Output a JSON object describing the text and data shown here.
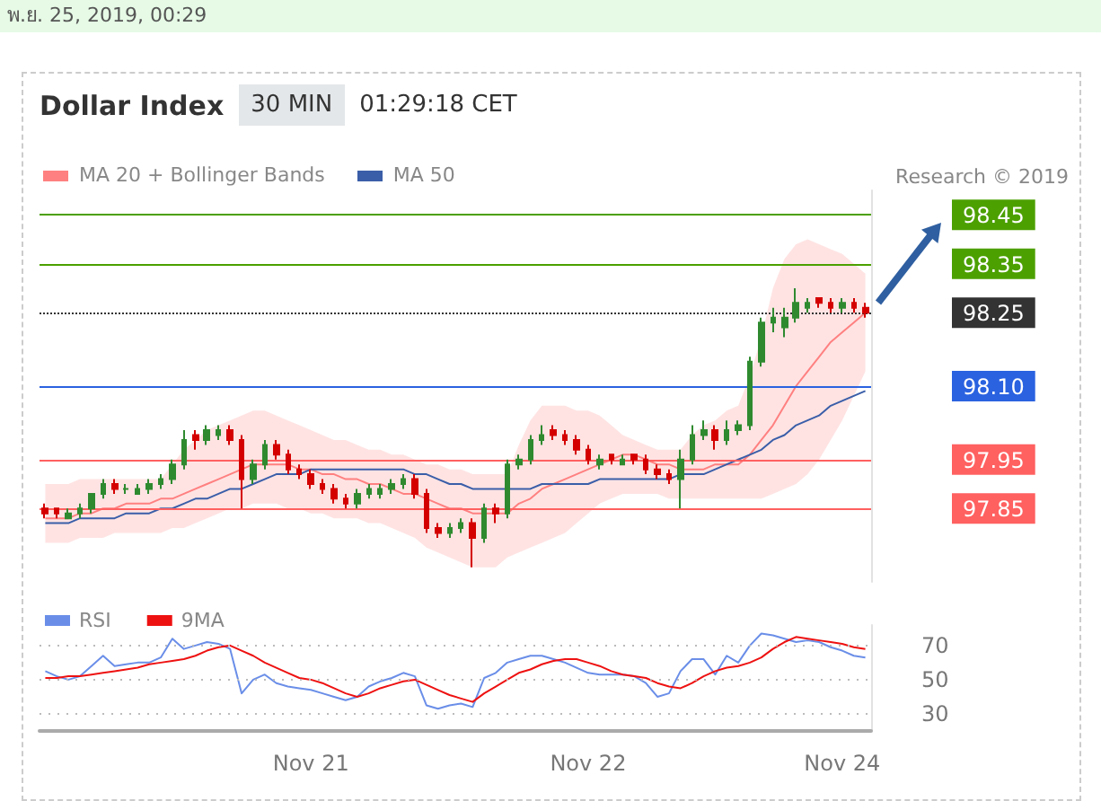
{
  "chart_data": [
    {
      "type": "candlestick",
      "title": "Dollar Index",
      "annotations": [
        "พ.ย. 25, 2019, 00:29",
        "30 MIN",
        "01:29:18 CET",
        "Research © 2019"
      ],
      "categories": [
        null,
        null,
        null,
        null,
        null,
        null,
        null,
        null,
        null,
        null,
        null,
        null,
        null,
        null,
        null,
        null,
        null,
        null,
        null,
        null,
        null,
        null,
        null,
        null,
        null,
        null,
        null,
        null,
        null,
        null,
        null,
        null,
        null,
        null,
        null,
        null,
        null,
        null,
        null,
        null,
        null,
        null,
        null,
        null,
        null,
        null,
        null,
        null,
        null,
        null,
        null,
        null,
        null,
        null,
        null,
        null,
        null,
        null,
        null,
        null,
        null,
        null,
        null,
        null,
        null,
        null,
        null,
        null,
        null,
        null,
        null,
        null
      ],
      "colors": [
        "#d40000",
        "#d40000",
        "#2f8a2f",
        "#2f8a2f",
        "#2f8a2f",
        "#2f8a2f",
        "#d40000",
        "#2f8a2f",
        "#2f8a2f",
        "#2f8a2f",
        "#2f8a2f",
        "#2f8a2f",
        "#2f8a2f",
        "#d40000",
        "#2f8a2f",
        "#2f8a2f",
        "#d40000",
        "#d40000",
        "#2f8a2f",
        "#2f8a2f",
        "#d40000",
        "#d40000",
        "#d40000",
        "#d40000",
        "#d40000",
        "#d40000",
        "#d40000",
        "#2f8a2f",
        "#2f8a2f",
        "#2f8a2f",
        "#2f8a2f",
        "#2f8a2f",
        "#d40000",
        "#d40000",
        "#d40000",
        "#2f8a2f",
        "#2f8a2f",
        "#d40000",
        "#2f8a2f",
        "#d40000",
        "#2f8a2f",
        "#2f8a2f",
        "#2f8a2f",
        "#2f8a2f",
        "#d40000",
        "#d40000",
        "#d40000",
        "#d40000",
        "#2f8a2f",
        "#d40000",
        "#2f8a2f",
        "#d40000",
        "#d40000",
        "#d40000",
        "#d40000",
        "#2f8a2f",
        "#2f8a2f",
        "#2f8a2f",
        "#d40000",
        "#2f8a2f",
        "#2f8a2f",
        "#2f8a2f",
        "#2f8a2f",
        "#2f8a2f",
        "#2f8a2f",
        "#2f8a2f",
        "#2f8a2f",
        "#d40000",
        "#d40000",
        "#2f8a2f",
        "#d40000",
        "#d40000"
      ],
      "ohlc": [
        [
          97.85,
          97.86,
          97.83,
          97.84
        ],
        [
          97.85,
          97.85,
          97.83,
          97.84
        ],
        [
          97.83,
          97.85,
          97.83,
          97.84
        ],
        [
          97.84,
          97.86,
          97.83,
          97.85
        ],
        [
          97.85,
          97.88,
          97.84,
          97.88
        ],
        [
          97.88,
          97.91,
          97.87,
          97.9
        ],
        [
          97.9,
          97.91,
          97.88,
          97.89
        ],
        [
          97.89,
          97.9,
          97.88,
          97.89
        ],
        [
          97.88,
          97.9,
          97.88,
          97.89
        ],
        [
          97.89,
          97.91,
          97.88,
          97.9
        ],
        [
          97.9,
          97.92,
          97.89,
          97.91
        ],
        [
          97.91,
          97.95,
          97.9,
          97.94
        ],
        [
          97.94,
          98.01,
          97.93,
          97.99
        ],
        [
          98,
          98.01,
          97.97,
          97.99
        ],
        [
          97.99,
          98.02,
          97.98,
          98.01
        ],
        [
          98,
          98.02,
          97.99,
          98.01
        ],
        [
          98.01,
          98.02,
          97.98,
          97.99
        ],
        [
          97.99,
          98,
          97.85,
          97.91
        ],
        [
          97.91,
          97.95,
          97.9,
          97.94
        ],
        [
          97.94,
          97.99,
          97.93,
          97.98
        ],
        [
          97.98,
          97.99,
          97.95,
          97.96
        ],
        [
          97.96,
          97.97,
          97.92,
          97.93
        ],
        [
          97.93,
          97.94,
          97.91,
          97.92
        ],
        [
          97.92,
          97.93,
          97.89,
          97.9
        ],
        [
          97.9,
          97.91,
          97.88,
          97.89
        ],
        [
          97.89,
          97.9,
          97.86,
          97.87
        ],
        [
          97.87,
          97.88,
          97.85,
          97.86
        ],
        [
          97.86,
          97.89,
          97.85,
          97.88
        ],
        [
          97.88,
          97.9,
          97.87,
          97.89
        ],
        [
          97.88,
          97.9,
          97.87,
          97.89
        ],
        [
          97.89,
          97.91,
          97.88,
          97.9
        ],
        [
          97.9,
          97.92,
          97.89,
          97.91
        ],
        [
          97.91,
          97.92,
          97.87,
          97.88
        ],
        [
          97.88,
          97.89,
          97.8,
          97.81
        ],
        [
          97.81,
          97.82,
          97.79,
          97.8
        ],
        [
          97.8,
          97.82,
          97.79,
          97.81
        ],
        [
          97.81,
          97.83,
          97.8,
          97.82
        ],
        [
          97.82,
          97.83,
          97.73,
          97.79
        ],
        [
          97.79,
          97.86,
          97.78,
          97.85
        ],
        [
          97.85,
          97.86,
          97.82,
          97.84
        ],
        [
          97.84,
          97.95,
          97.83,
          97.94
        ],
        [
          97.94,
          97.96,
          97.93,
          97.95
        ],
        [
          97.95,
          98,
          97.94,
          97.99
        ],
        [
          97.99,
          98.02,
          97.98,
          98
        ],
        [
          98.01,
          98.02,
          97.99,
          98
        ],
        [
          98,
          98.01,
          97.98,
          97.99
        ],
        [
          97.99,
          98,
          97.96,
          97.97
        ],
        [
          97.97,
          97.98,
          97.94,
          97.95
        ],
        [
          97.94,
          97.96,
          97.93,
          97.95
        ],
        [
          97.96,
          97.96,
          97.94,
          97.95
        ],
        [
          97.94,
          97.96,
          97.94,
          97.95
        ],
        [
          97.96,
          97.96,
          97.94,
          97.95
        ],
        [
          97.95,
          97.96,
          97.92,
          97.93
        ],
        [
          97.93,
          97.94,
          97.91,
          97.92
        ],
        [
          97.92,
          97.93,
          97.9,
          97.91
        ],
        [
          97.91,
          97.97,
          97.85,
          97.95
        ],
        [
          97.95,
          98.02,
          97.94,
          98
        ],
        [
          98,
          98.03,
          97.99,
          98.01
        ],
        [
          98.01,
          98.02,
          97.97,
          97.99
        ],
        [
          97.99,
          98.03,
          97.98,
          98.01
        ],
        [
          98.01,
          98.03,
          98,
          98.02
        ],
        [
          98.02,
          98.16,
          98.01,
          98.15
        ],
        [
          98.15,
          98.24,
          98.14,
          98.23
        ],
        [
          98.23,
          98.26,
          98.21,
          98.24
        ],
        [
          98.22,
          98.26,
          98.2,
          98.24
        ],
        [
          98.24,
          98.3,
          98.23,
          98.27
        ],
        [
          98.26,
          98.28,
          98.25,
          98.27
        ],
        [
          98.28,
          98.28,
          98.26,
          98.27
        ],
        [
          98.27,
          98.28,
          98.25,
          98.26
        ],
        [
          98.26,
          98.28,
          98.25,
          98.27
        ],
        [
          98.27,
          98.28,
          98.25,
          98.26
        ],
        [
          98.26,
          98.27,
          98.24,
          98.25
        ]
      ],
      "series": [
        {
          "type": "line",
          "name": "MA 20 + Bollinger Bands",
          "color": "#ff8080",
          "values": [
            97.83,
            97.83,
            97.83,
            97.84,
            97.84,
            97.85,
            97.85,
            97.86,
            97.86,
            97.86,
            97.87,
            97.87,
            97.88,
            97.89,
            97.9,
            97.91,
            97.92,
            97.93,
            97.94,
            97.94,
            97.94,
            97.94,
            97.93,
            97.93,
            97.92,
            97.92,
            97.91,
            97.91,
            97.9,
            97.9,
            97.89,
            97.88,
            97.88,
            97.87,
            97.86,
            97.85,
            97.85,
            97.84,
            97.84,
            97.84,
            97.84,
            97.86,
            97.87,
            97.89,
            97.9,
            97.91,
            97.92,
            97.93,
            97.94,
            97.95,
            97.96,
            97.96,
            97.95,
            97.94,
            97.94,
            97.93,
            97.93,
            97.93,
            97.94,
            97.94,
            97.94,
            97.96,
            97.99,
            98.02,
            98.06,
            98.1,
            98.13,
            98.16,
            98.19,
            98.21,
            98.23,
            98.25
          ],
          "upper": [
            97.9,
            97.9,
            97.9,
            97.91,
            97.91,
            97.91,
            97.91,
            97.91,
            97.91,
            97.91,
            97.91,
            97.94,
            97.97,
            97.99,
            98.01,
            98.02,
            98.03,
            98.04,
            98.05,
            98.05,
            98.04,
            98.03,
            98.02,
            98.01,
            98,
            97.99,
            97.99,
            97.98,
            97.97,
            97.97,
            97.96,
            97.96,
            97.95,
            97.94,
            97.94,
            97.93,
            97.93,
            97.92,
            97.92,
            97.92,
            97.92,
            97.98,
            98.03,
            98.06,
            98.06,
            98.06,
            98.05,
            98.05,
            98.04,
            98.02,
            98,
            97.99,
            97.98,
            97.97,
            97.97,
            97.97,
            98,
            98.02,
            98.03,
            98.05,
            98.06,
            98.12,
            98.2,
            98.3,
            98.36,
            98.39,
            98.4,
            98.39,
            98.38,
            98.37,
            98.35,
            98.33
          ],
          "lower": [
            97.78,
            97.78,
            97.78,
            97.79,
            97.79,
            97.79,
            97.8,
            97.8,
            97.8,
            97.8,
            97.8,
            97.81,
            97.81,
            97.82,
            97.83,
            97.84,
            97.85,
            97.85,
            97.86,
            97.86,
            97.86,
            97.85,
            97.85,
            97.84,
            97.84,
            97.83,
            97.83,
            97.83,
            97.82,
            97.82,
            97.81,
            97.8,
            97.79,
            97.77,
            97.76,
            97.75,
            97.74,
            97.73,
            97.73,
            97.73,
            97.75,
            97.76,
            97.77,
            97.78,
            97.79,
            97.8,
            97.82,
            97.84,
            97.86,
            97.87,
            97.88,
            97.88,
            97.88,
            97.88,
            97.87,
            97.87,
            97.87,
            97.87,
            97.87,
            97.87,
            97.87,
            97.87,
            97.87,
            97.88,
            97.89,
            97.9,
            97.92,
            97.95,
            97.99,
            98.03,
            98.08,
            98.13
          ]
        },
        {
          "type": "line",
          "name": "MA 50",
          "color": "#3a5ea8",
          "values": [
            97.82,
            97.82,
            97.82,
            97.83,
            97.83,
            97.83,
            97.83,
            97.84,
            97.84,
            97.84,
            97.85,
            97.85,
            97.86,
            97.87,
            97.87,
            97.88,
            97.89,
            97.89,
            97.9,
            97.91,
            97.92,
            97.92,
            97.92,
            97.93,
            97.93,
            97.93,
            97.93,
            97.93,
            97.93,
            97.93,
            97.93,
            97.93,
            97.92,
            97.92,
            97.91,
            97.9,
            97.9,
            97.89,
            97.89,
            97.89,
            97.89,
            97.89,
            97.89,
            97.9,
            97.9,
            97.9,
            97.9,
            97.9,
            97.91,
            97.91,
            97.91,
            97.91,
            97.91,
            97.91,
            97.91,
            97.92,
            97.92,
            97.92,
            97.93,
            97.94,
            97.95,
            97.96,
            97.97,
            97.99,
            98,
            98.02,
            98.03,
            98.04,
            98.06,
            98.07,
            98.08,
            98.09
          ]
        }
      ],
      "ylim": [
        97.7,
        98.5
      ],
      "yticks": [
        {
          "value": 97.85,
          "label": "97.85"
        },
        {
          "value": 97.95,
          "label": "97.95"
        },
        {
          "value": 98.1,
          "label": "98.10"
        },
        {
          "value": 98.25,
          "label": "98.25"
        },
        {
          "value": 98.35,
          "label": "98.35"
        },
        {
          "value": 98.45,
          "label": "98.45"
        }
      ],
      "ref_lines": [
        {
          "axis": "y",
          "value": 98.45,
          "color": "#4ca000"
        },
        {
          "axis": "y",
          "value": 98.35,
          "color": "#4ca000"
        },
        {
          "axis": "y",
          "value": 98.25,
          "color": "#333333",
          "line_style": "dotted"
        },
        {
          "axis": "y",
          "value": 98.1,
          "color": "#2a62e0"
        },
        {
          "axis": "y",
          "value": 97.95,
          "color": "#ff6060"
        },
        {
          "axis": "y",
          "value": 97.85,
          "color": "#ff6060"
        }
      ],
      "legend": "top left",
      "marker": "none",
      "tick_labels": "y"
    },
    {
      "type": "line",
      "categories": [
        null,
        null,
        null,
        null,
        null,
        null,
        null,
        null,
        null,
        null,
        null,
        null,
        null,
        null,
        null,
        null,
        null,
        null,
        null,
        null,
        null,
        null,
        null,
        "Nov 21",
        null,
        null,
        null,
        null,
        null,
        null,
        null,
        null,
        null,
        null,
        null,
        null,
        null,
        null,
        null,
        null,
        null,
        null,
        null,
        null,
        null,
        null,
        null,
        "Nov 22",
        null,
        null,
        null,
        null,
        null,
        null,
        null,
        null,
        null,
        null,
        null,
        null,
        null,
        null,
        null,
        null,
        null,
        null,
        null,
        null,
        null,
        "Nov 24",
        null,
        null
      ],
      "series": [
        {
          "name": "RSI",
          "color": "#6a8ee8",
          "values": [
            55,
            52,
            50,
            52,
            58,
            64,
            58,
            59,
            60,
            60,
            63,
            74,
            68,
            70,
            72,
            71,
            68,
            42,
            50,
            53,
            48,
            46,
            45,
            44,
            42,
            40,
            38,
            40,
            46,
            49,
            51,
            54,
            52,
            35,
            33,
            35,
            36,
            34,
            51,
            54,
            60,
            62,
            64,
            64,
            62,
            60,
            57,
            54,
            53,
            53,
            53,
            52,
            48,
            40,
            42,
            55,
            62,
            62,
            53,
            64,
            60,
            70,
            77,
            76,
            74,
            72,
            73,
            72,
            69,
            67,
            64,
            63
          ]
        },
        {
          "name": "9MA",
          "color": "#ee1111",
          "values": [
            51,
            51,
            52,
            52,
            53,
            54,
            55,
            56,
            57,
            59,
            60,
            61,
            62,
            64,
            67,
            69,
            70,
            67,
            64,
            60,
            57,
            54,
            51,
            50,
            48,
            45,
            42,
            40,
            42,
            45,
            47,
            49,
            50,
            47,
            44,
            41,
            39,
            37,
            42,
            46,
            50,
            54,
            56,
            59,
            61,
            62,
            62,
            60,
            58,
            55,
            53,
            52,
            51,
            48,
            46,
            45,
            48,
            52,
            55,
            57,
            58,
            60,
            63,
            68,
            72,
            75,
            74,
            73,
            72,
            71,
            69,
            68
          ]
        }
      ],
      "ylim": [
        20,
        82
      ],
      "yticks": [
        30,
        50,
        70
      ],
      "grid": "y",
      "legend": "top left",
      "marker": "none"
    }
  ]
}
